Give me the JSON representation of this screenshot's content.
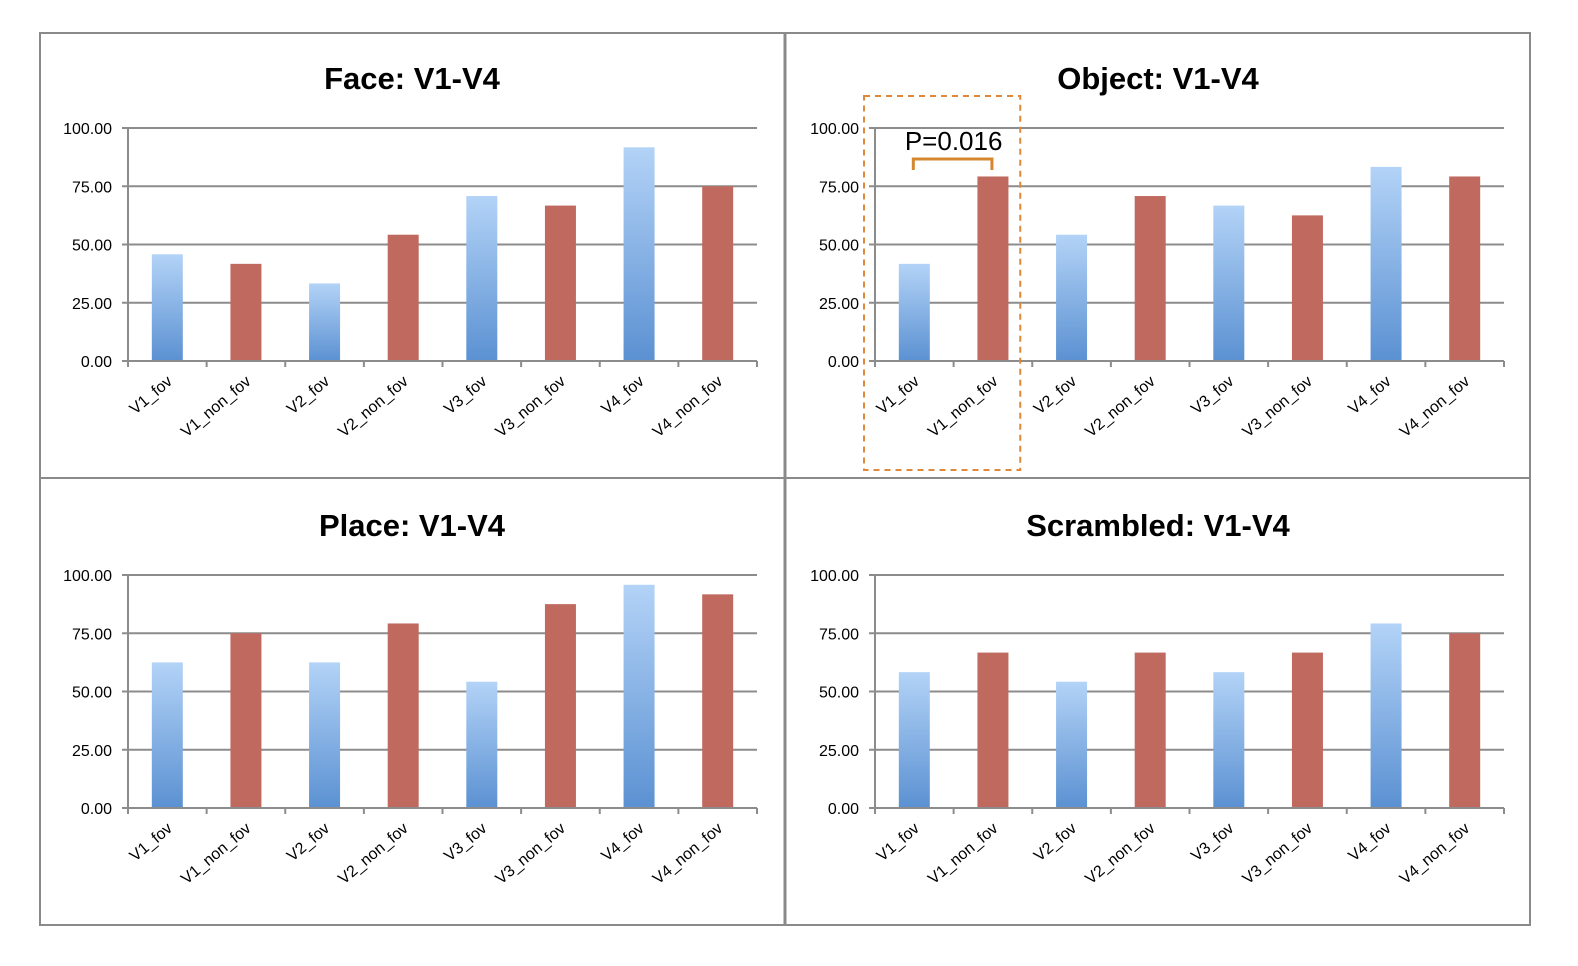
{
  "colors": {
    "fov_top": "#B3D3F7",
    "fov_bottom": "#5B91D2",
    "non_fov": "#C0695F",
    "grid": "#8C8C8C",
    "frame": "#8A8A8A",
    "annotation_box": "#E0883A",
    "bracket": "#D4872F"
  },
  "chart_data": [
    {
      "type": "bar",
      "title": "Face: V1-V4",
      "categories": [
        "V1_fov",
        "V1_non_fov",
        "V2_fov",
        "V2_non_fov",
        "V3_fov",
        "V3_non_fov",
        "V4_fov",
        "V4_non_fov"
      ],
      "values": [
        45.8,
        41.7,
        33.3,
        54.2,
        70.8,
        66.7,
        91.7,
        75.0
      ],
      "ylim": [
        0,
        100
      ],
      "yticks": [
        "0.00",
        "25.00",
        "50.00",
        "75.00",
        "100.00"
      ],
      "grid": true
    },
    {
      "type": "bar",
      "title": "Object: V1-V4",
      "categories": [
        "V1_fov",
        "V1_non_fov",
        "V2_fov",
        "V2_non_fov",
        "V3_fov",
        "V3_non_fov",
        "V4_fov",
        "V4_non_fov"
      ],
      "values": [
        41.7,
        79.2,
        54.2,
        70.8,
        66.7,
        62.5,
        83.3,
        79.2
      ],
      "ylim": [
        0,
        100
      ],
      "yticks": [
        "0.00",
        "25.00",
        "50.00",
        "75.00",
        "100.00"
      ],
      "grid": true,
      "annotation": {
        "text": "P=0.016",
        "between": [
          "V1_fov",
          "V1_non_fov"
        ]
      }
    },
    {
      "type": "bar",
      "title": "Place: V1-V4",
      "categories": [
        "V1_fov",
        "V1_non_fov",
        "V2_fov",
        "V2_non_fov",
        "V3_fov",
        "V3_non_fov",
        "V4_fov",
        "V4_non_fov"
      ],
      "values": [
        62.5,
        75.0,
        62.5,
        79.2,
        54.2,
        87.5,
        95.8,
        91.7
      ],
      "ylim": [
        0,
        100
      ],
      "yticks": [
        "0.00",
        "25.00",
        "50.00",
        "75.00",
        "100.00"
      ],
      "grid": true
    },
    {
      "type": "bar",
      "title": "Scrambled: V1-V4",
      "categories": [
        "V1_fov",
        "V1_non_fov",
        "V2_fov",
        "V2_non_fov",
        "V3_fov",
        "V3_non_fov",
        "V4_fov",
        "V4_non_fov"
      ],
      "values": [
        58.3,
        66.7,
        54.2,
        66.7,
        58.3,
        66.7,
        79.2,
        75.0
      ],
      "ylim": [
        0,
        100
      ],
      "yticks": [
        "0.00",
        "25.00",
        "50.00",
        "75.00",
        "100.00"
      ],
      "grid": true
    }
  ]
}
